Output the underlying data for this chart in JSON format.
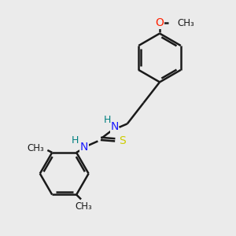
{
  "background_color": "#ebebeb",
  "bond_color": "#1a1a1a",
  "bond_width": 1.8,
  "figsize": [
    3.0,
    3.0
  ],
  "dpi": 100,
  "atom_colors": {
    "N": "#1a1aff",
    "S": "#cccc00",
    "O": "#ff2000",
    "C": "#1a1a1a",
    "H": "#008080"
  },
  "xlim": [
    0,
    10
  ],
  "ylim": [
    0,
    10
  ]
}
